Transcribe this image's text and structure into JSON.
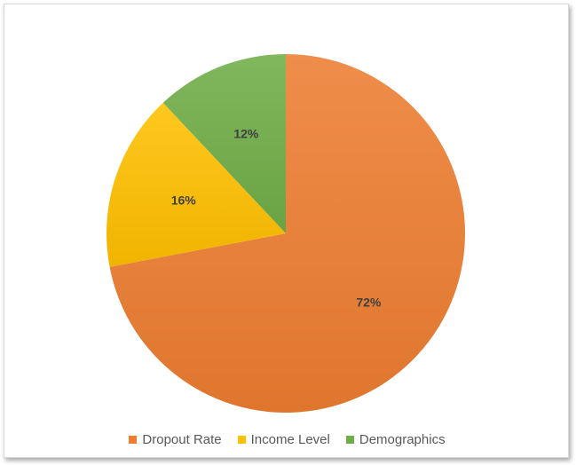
{
  "chart_data": {
    "type": "pie",
    "title": "",
    "categories": [
      "Dropout Rate",
      "Income Level",
      "Demographics"
    ],
    "values": [
      72,
      16,
      12
    ],
    "labels": [
      "72%",
      "16%",
      "12%"
    ],
    "colors": [
      "#ED7D31",
      "#FFC000",
      "#70AD47"
    ],
    "start_angle": "12 o'clock, clockwise",
    "legend_position": "bottom"
  }
}
